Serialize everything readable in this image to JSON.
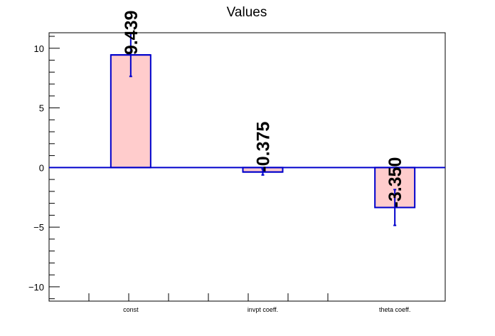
{
  "chart_data": {
    "type": "bar",
    "title": "Values",
    "categories": [
      "const",
      "invpt coeff.",
      "theta coeff."
    ],
    "values": [
      9.439,
      -0.375,
      -3.35
    ],
    "errors": [
      1.8,
      0.25,
      1.5
    ],
    "data_labels": [
      "9.439",
      "-0.375",
      "-3.350"
    ],
    "ylim": [
      -11.2,
      11.3
    ],
    "y_major_ticks": [
      -10,
      -5,
      0,
      5,
      10
    ],
    "y_minor_step": 1,
    "grid": false,
    "legend": "none",
    "colors": {
      "bar_fill": "#ffcccc",
      "bar_edge": "#0000cc",
      "zero_line": "#0000cc",
      "axis": "#000000"
    }
  }
}
